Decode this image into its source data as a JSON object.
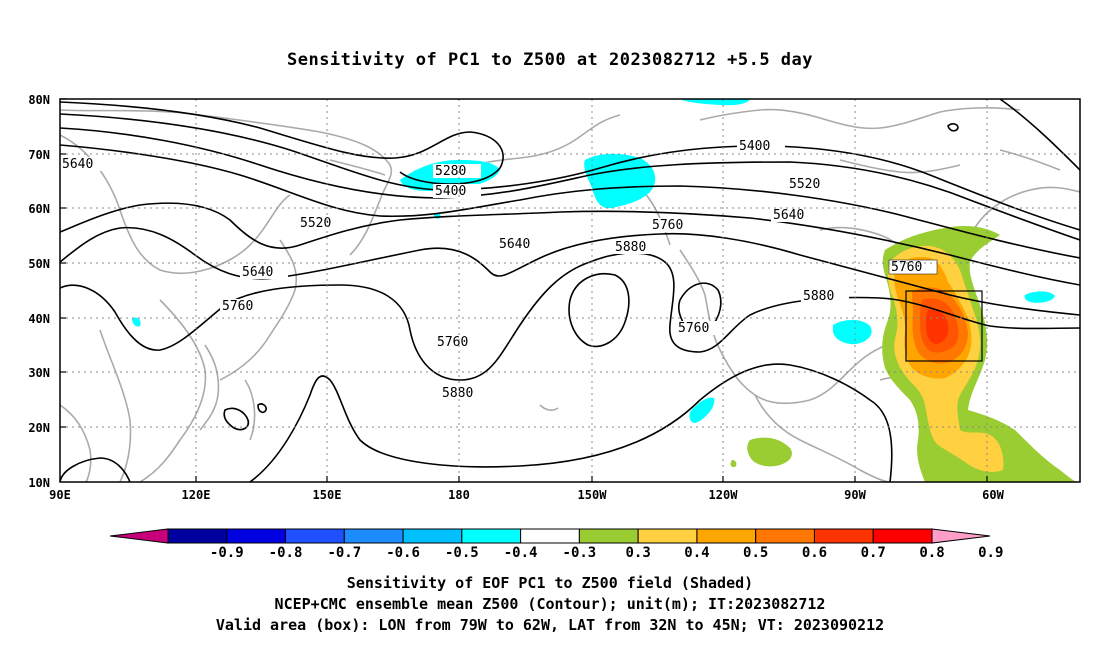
{
  "title": "Sensitivity of PC1 to Z500 at 2023082712 +5.5 day",
  "axes": {
    "lat_labels": [
      "80N",
      "70N",
      "60N",
      "50N",
      "40N",
      "30N",
      "20N",
      "10N"
    ],
    "lon_labels": [
      "90E",
      "120E",
      "150E",
      "180",
      "150W",
      "120W",
      "90W",
      "60W"
    ]
  },
  "contour_labels": [
    "5640",
    "5280",
    "5400",
    "5400",
    "5520",
    "5520",
    "5640",
    "5640",
    "5760",
    "5640",
    "5760",
    "5880",
    "5760",
    "5880",
    "5760",
    "5880",
    "5760"
  ],
  "colorbar": {
    "labels": [
      "-0.9",
      "-0.8",
      "-0.7",
      "-0.6",
      "-0.5",
      "-0.4",
      "-0.3",
      "0.3",
      "0.4",
      "0.5",
      "0.6",
      "0.7",
      "0.8",
      "0.9"
    ],
    "colors": [
      "#c8007a",
      "#0000a0",
      "#0000e0",
      "#1e50ff",
      "#1e8cff",
      "#00c0ff",
      "#00ffff",
      "#ffffff",
      "#9acd32",
      "#ffd040",
      "#ffa500",
      "#ff7700",
      "#ff3300",
      "#ff0000",
      "#ff9ec8"
    ]
  },
  "valid_box": {
    "lon_from": "79W",
    "lon_to": "62W",
    "lat_from": "32N",
    "lat_to": "45N"
  },
  "captions": {
    "line1": "Sensitivity of EOF PC1 to Z500 field (Shaded)",
    "line2": "NCEP+CMC ensemble mean Z500 (Contour); unit(m); IT:2023082712",
    "line3": "Valid area (box): LON from 79W to 62W, LAT from 32N to 45N; VT: 2023090212"
  }
}
